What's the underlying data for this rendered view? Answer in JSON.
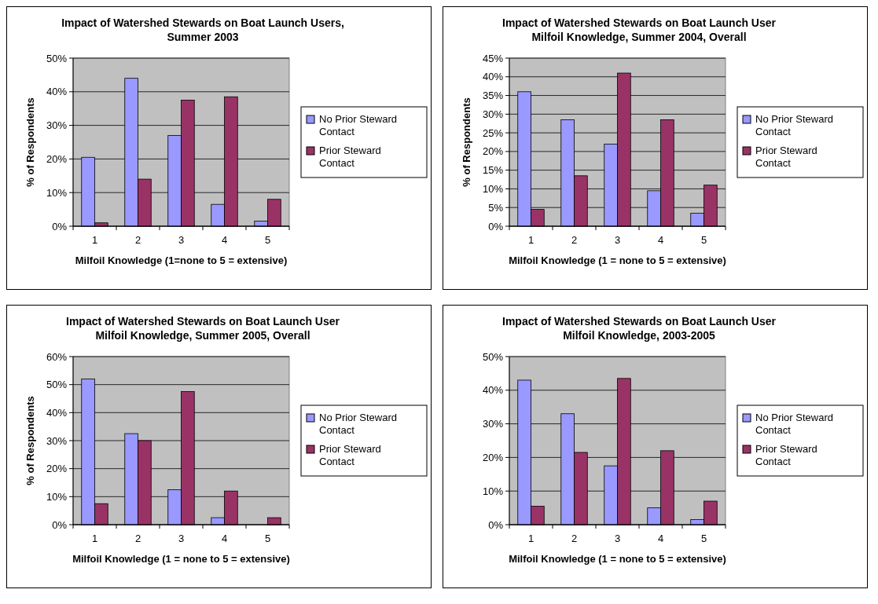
{
  "chart_data": [
    {
      "type": "bar",
      "title": "Impact of Watershed Stewards on Boat Launch Users, Summer 2003",
      "xlabel": "Milfoil Knowledge (1=none to 5 = extensive)",
      "ylabel": "% of Respondents",
      "categories": [
        "1",
        "2",
        "3",
        "4",
        "5"
      ],
      "ylim": [
        0,
        50
      ],
      "yticks": [
        {
          "value": 0,
          "label": "0%"
        },
        {
          "value": 10,
          "label": "10%"
        },
        {
          "value": 20,
          "label": "20%"
        },
        {
          "value": 30,
          "label": "30%"
        },
        {
          "value": 40,
          "label": "40%"
        },
        {
          "value": 50,
          "label": "50%"
        }
      ],
      "grid": "y",
      "legend": "right",
      "series": [
        {
          "name": "No Prior Steward Contact",
          "color": "#9999ff",
          "values": [
            20.5,
            44,
            27,
            6.5,
            1.5
          ]
        },
        {
          "name": "Prior Steward Contact",
          "color": "#993366",
          "values": [
            1,
            14,
            37.5,
            38.5,
            8
          ]
        }
      ]
    },
    {
      "type": "bar",
      "title": "Impact of Watershed Stewards on Boat Launch User Milfoil Knowledge, Summer 2004, Overall",
      "xlabel": "Milfoil Knowledge (1 = none to 5 = extensive)",
      "ylabel": "% of Respondents",
      "categories": [
        "1",
        "2",
        "3",
        "4",
        "5"
      ],
      "ylim": [
        0,
        45
      ],
      "yticks": [
        {
          "value": 0,
          "label": "0%"
        },
        {
          "value": 5,
          "label": "5%"
        },
        {
          "value": 10,
          "label": "10%"
        },
        {
          "value": 15,
          "label": "15%"
        },
        {
          "value": 20,
          "label": "20%"
        },
        {
          "value": 25,
          "label": "25%"
        },
        {
          "value": 30,
          "label": "30%"
        },
        {
          "value": 35,
          "label": "35%"
        },
        {
          "value": 40,
          "label": "40%"
        },
        {
          "value": 45,
          "label": "45%"
        }
      ],
      "grid": "y",
      "legend": "right",
      "series": [
        {
          "name": "No Prior Steward Contact",
          "color": "#9999ff",
          "values": [
            36,
            28.5,
            22,
            9.5,
            3.5
          ]
        },
        {
          "name": "Prior Steward Contact",
          "color": "#993366",
          "values": [
            4.5,
            13.5,
            41,
            28.5,
            11
          ]
        }
      ]
    },
    {
      "type": "bar",
      "title": "Impact of Watershed Stewards on Boat Launch User Milfoil Knowledge, Summer 2005, Overall",
      "xlabel": "Milfoil Knowledge (1 = none to 5 = extensive)",
      "ylabel": "% of Respondents",
      "categories": [
        "1",
        "2",
        "3",
        "4",
        "5"
      ],
      "ylim": [
        0,
        60
      ],
      "yticks": [
        {
          "value": 0,
          "label": "0%"
        },
        {
          "value": 10,
          "label": "10%"
        },
        {
          "value": 20,
          "label": "20%"
        },
        {
          "value": 30,
          "label": "30%"
        },
        {
          "value": 40,
          "label": "40%"
        },
        {
          "value": 50,
          "label": "50%"
        },
        {
          "value": 60,
          "label": "60%"
        }
      ],
      "grid": "y",
      "legend": "right",
      "series": [
        {
          "name": "No Prior Steward Contact",
          "color": "#9999ff",
          "values": [
            52,
            32.5,
            12.5,
            2.5,
            0
          ]
        },
        {
          "name": "Prior Steward Contact",
          "color": "#993366",
          "values": [
            7.5,
            30,
            47.5,
            12,
            2.5
          ]
        }
      ]
    },
    {
      "type": "bar",
      "title": "Impact of Watershed Stewards on Boat Launch User Milfoil Knowledge, 2003-2005",
      "xlabel": "Milfoil Knowledge (1 = none to 5 = extensive)",
      "categories": [
        "1",
        "2",
        "3",
        "4",
        "5"
      ],
      "ylim": [
        0,
        50
      ],
      "yticks": [
        {
          "value": 0,
          "label": "0%"
        },
        {
          "value": 10,
          "label": "10%"
        },
        {
          "value": 20,
          "label": "20%"
        },
        {
          "value": 30,
          "label": "30%"
        },
        {
          "value": 40,
          "label": "40%"
        },
        {
          "value": 50,
          "label": "50%"
        }
      ],
      "grid": "y",
      "legend": "right",
      "series": [
        {
          "name": "No Prior Steward Contact",
          "color": "#9999ff",
          "values": [
            43,
            33,
            17.5,
            5,
            1.5
          ]
        },
        {
          "name": "Prior Steward Contact",
          "color": "#993366",
          "values": [
            5.5,
            21.5,
            43.5,
            22,
            7
          ]
        }
      ]
    }
  ]
}
